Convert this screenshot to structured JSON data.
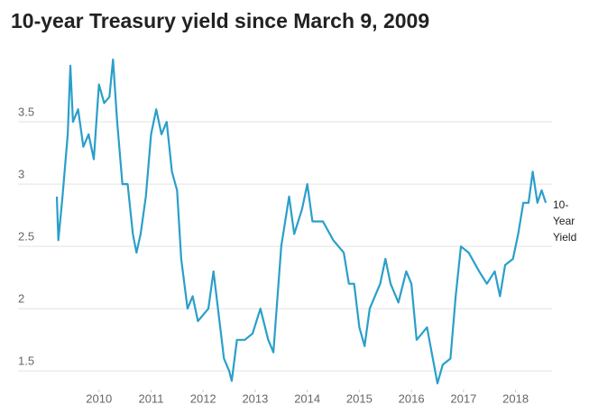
{
  "chart_data": {
    "type": "line",
    "title": "10-year Treasury yield since March 9, 2009",
    "x": [
      2009.19,
      2009.22,
      2009.3,
      2009.4,
      2009.45,
      2009.5,
      2009.6,
      2009.7,
      2009.8,
      2009.9,
      2010.0,
      2010.1,
      2010.2,
      2010.27,
      2010.35,
      2010.45,
      2010.55,
      2010.65,
      2010.72,
      2010.8,
      2010.9,
      2011.0,
      2011.1,
      2011.2,
      2011.3,
      2011.4,
      2011.5,
      2011.58,
      2011.7,
      2011.8,
      2011.9,
      2012.0,
      2012.1,
      2012.2,
      2012.3,
      2012.4,
      2012.5,
      2012.55,
      2012.65,
      2012.8,
      2012.95,
      2013.1,
      2013.25,
      2013.35,
      2013.5,
      2013.65,
      2013.75,
      2013.9,
      2014.0,
      2014.1,
      2014.3,
      2014.5,
      2014.7,
      2014.8,
      2014.9,
      2015.0,
      2015.1,
      2015.2,
      2015.4,
      2015.5,
      2015.6,
      2015.75,
      2015.9,
      2016.0,
      2016.1,
      2016.3,
      2016.5,
      2016.6,
      2016.75,
      2016.85,
      2016.95,
      2017.1,
      2017.3,
      2017.45,
      2017.6,
      2017.7,
      2017.8,
      2017.95,
      2018.05,
      2018.15,
      2018.25,
      2018.33,
      2018.42,
      2018.5,
      2018.58
    ],
    "series": [
      {
        "name": "10-Year Yield",
        "color": "#2a9fc9",
        "values": [
          2.9,
          2.55,
          2.9,
          3.4,
          3.95,
          3.5,
          3.6,
          3.3,
          3.4,
          3.2,
          3.8,
          3.65,
          3.7,
          4.0,
          3.5,
          3.0,
          3.0,
          2.6,
          2.45,
          2.6,
          2.9,
          3.4,
          3.6,
          3.4,
          3.5,
          3.1,
          2.95,
          2.4,
          2.0,
          2.1,
          1.9,
          1.95,
          2.0,
          2.3,
          1.95,
          1.6,
          1.5,
          1.42,
          1.75,
          1.75,
          1.8,
          2.0,
          1.75,
          1.65,
          2.5,
          2.9,
          2.6,
          2.8,
          3.0,
          2.7,
          2.7,
          2.55,
          2.45,
          2.2,
          2.2,
          1.85,
          1.7,
          2.0,
          2.2,
          2.4,
          2.2,
          2.05,
          2.3,
          2.2,
          1.75,
          1.85,
          1.4,
          1.55,
          1.6,
          2.1,
          2.5,
          2.45,
          2.3,
          2.2,
          2.3,
          2.1,
          2.35,
          2.4,
          2.6,
          2.85,
          2.85,
          3.1,
          2.85,
          2.95,
          2.85
        ]
      }
    ],
    "xlim": [
      2009.0,
      2018.7
    ],
    "xticks": [
      2010,
      2011,
      2012,
      2013,
      2014,
      2015,
      2016,
      2017,
      2018
    ],
    "ylim": [
      1.35,
      4.0
    ],
    "yticks": [
      1.5,
      2,
      2.5,
      3,
      3.5
    ],
    "grid": true
  }
}
